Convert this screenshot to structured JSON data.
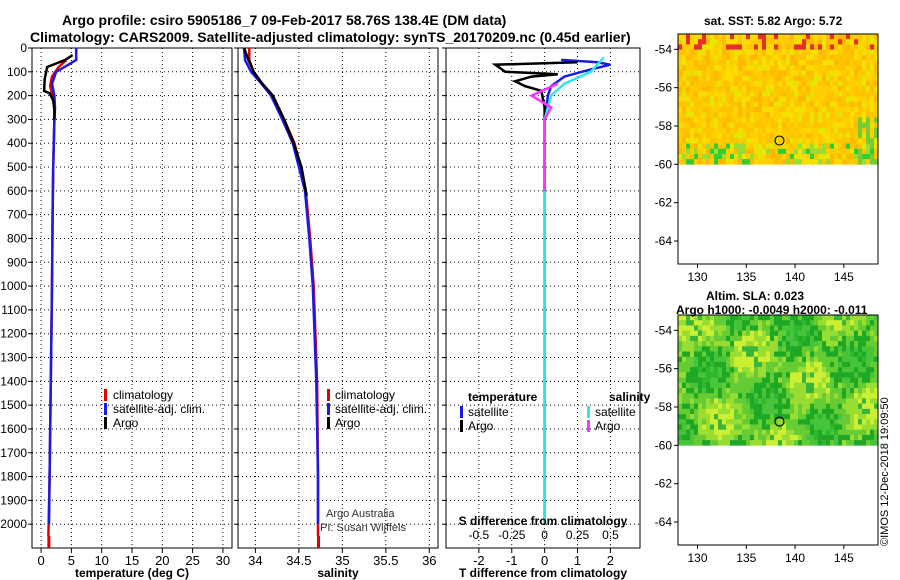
{
  "header": {
    "title_line1": "Argo profile: csiro 5905186_7 09-Feb-2017 58.76S 138.4E (DM data)",
    "title_line2": "Climatology: CARS2009. Satellite-adjusted climatology: synTS_20170209.nc (0.45d earlier)"
  },
  "colors": {
    "climatology": "#e00000",
    "satellite": "#1a1ae6",
    "argo": "#000000",
    "sal_satellite": "#33e6e6",
    "sal_argo": "#ff33ff"
  },
  "chart_data": [
    {
      "type": "line",
      "id": "temperature",
      "xlabel": "temperature (deg C)",
      "xlim": [
        -1.5,
        31.5
      ],
      "ylim": [
        2100,
        0
      ],
      "x_ticks": [
        0,
        5,
        10,
        15,
        20,
        25,
        30
      ],
      "y_ticks": [
        0,
        100,
        200,
        300,
        400,
        500,
        600,
        700,
        800,
        900,
        1000,
        1100,
        1200,
        1300,
        1400,
        1500,
        1600,
        1700,
        1800,
        1900,
        2000
      ],
      "legend": [
        "climatology",
        "satellite-adj. clim.",
        "Argo"
      ],
      "series": [
        {
          "name": "climatology",
          "points": [
            [
              4.2,
              50
            ],
            [
              2.9,
              80
            ],
            [
              1.8,
              120
            ],
            [
              1.5,
              160
            ],
            [
              1.9,
              200
            ],
            [
              2.2,
              250
            ],
            [
              2.2,
              300
            ],
            [
              2.1,
              400
            ],
            [
              2.0,
              500
            ],
            [
              1.9,
              700
            ],
            [
              1.8,
              1000
            ],
            [
              1.6,
              1400
            ],
            [
              1.4,
              1800
            ],
            [
              1.2,
              2050
            ]
          ]
        },
        {
          "name": "satellite-adj. clim.",
          "points": [
            [
              5.8,
              0
            ],
            [
              5.8,
              50
            ],
            [
              4.5,
              70
            ],
            [
              2.5,
              100
            ],
            [
              1.8,
              150
            ],
            [
              2.2,
              200
            ],
            [
              2.3,
              250
            ],
            [
              2.2,
              300
            ],
            [
              2.1,
              400
            ],
            [
              2.0,
              500
            ],
            [
              1.9,
              700
            ],
            [
              1.8,
              1000
            ],
            [
              1.6,
              1400
            ],
            [
              1.4,
              1800
            ],
            [
              1.3,
              2000
            ]
          ]
        },
        {
          "name": "Argo",
          "points": [
            [
              5.2,
              30
            ],
            [
              4.0,
              50
            ],
            [
              1.0,
              80
            ],
            [
              0.6,
              130
            ],
            [
              0.5,
              180
            ],
            [
              1.4,
              190
            ],
            [
              2.0,
              220
            ],
            [
              2.2,
              260
            ],
            [
              2.2,
              300
            ]
          ]
        }
      ]
    },
    {
      "type": "line",
      "id": "salinity",
      "xlabel": "salinity",
      "xlim": [
        33.8,
        36.1
      ],
      "ylim": [
        2100,
        0
      ],
      "x_ticks": [
        34,
        34.5,
        35,
        35.5,
        36
      ],
      "legend": [
        "climatology",
        "satellite-adj. clim.",
        "Argo"
      ],
      "credit_line1": "Argo Australia",
      "credit_line2": "PI: Susan Wijffels",
      "series": [
        {
          "name": "climatology",
          "points": [
            [
              33.93,
              0
            ],
            [
              33.93,
              50
            ],
            [
              33.98,
              100
            ],
            [
              34.08,
              150
            ],
            [
              34.2,
              200
            ],
            [
              34.33,
              300
            ],
            [
              34.45,
              400
            ],
            [
              34.52,
              500
            ],
            [
              34.58,
              600
            ],
            [
              34.63,
              800
            ],
            [
              34.67,
              1000
            ],
            [
              34.71,
              1400
            ],
            [
              34.72,
              1800
            ],
            [
              34.72,
              2050
            ]
          ]
        },
        {
          "name": "satellite-adj. clim.",
          "points": [
            [
              33.87,
              0
            ],
            [
              33.88,
              50
            ],
            [
              33.95,
              100
            ],
            [
              34.07,
              150
            ],
            [
              34.18,
              200
            ],
            [
              34.31,
              300
            ],
            [
              34.43,
              400
            ],
            [
              34.5,
              500
            ],
            [
              34.57,
              600
            ],
            [
              34.62,
              800
            ],
            [
              34.66,
              1000
            ],
            [
              34.7,
              1400
            ],
            [
              34.72,
              1800
            ],
            [
              34.72,
              2000
            ]
          ]
        },
        {
          "name": "Argo",
          "points": [
            [
              33.87,
              0
            ],
            [
              33.92,
              50
            ],
            [
              33.98,
              100
            ],
            [
              34.08,
              150
            ],
            [
              34.2,
              200
            ],
            [
              34.33,
              300
            ],
            [
              34.44,
              400
            ],
            [
              34.53,
              500
            ],
            [
              34.58,
              600
            ],
            [
              34.59,
              620
            ]
          ]
        }
      ]
    },
    {
      "type": "line",
      "id": "difference",
      "xlabel": "T difference from climatology",
      "x2label": "S difference from climatology",
      "xlim": [
        -3,
        2.9
      ],
      "ylim": [
        2100,
        0
      ],
      "x_ticks": [
        -2,
        -1,
        0,
        1,
        2
      ],
      "x2_ticks": [
        "-0.5",
        "-0.25",
        "0",
        "0.25",
        "0.5"
      ],
      "legend_left_title": "temperature",
      "legend_right_title": "salinity",
      "legend_left": [
        "satellite",
        "Argo"
      ],
      "legend_right": [
        "satellite",
        "Argo"
      ],
      "series": [
        {
          "name": "T satellite",
          "points": [
            [
              0.5,
              50
            ],
            [
              1.6,
              60
            ],
            [
              2.0,
              70
            ],
            [
              1.4,
              90
            ],
            [
              0.6,
              120
            ],
            [
              0.2,
              160
            ],
            [
              0.1,
              200
            ],
            [
              0.0,
              300
            ],
            [
              0.0,
              600
            ],
            [
              0.0,
              2000
            ]
          ]
        },
        {
          "name": "T Argo",
          "points": [
            [
              1.0,
              60
            ],
            [
              -1.5,
              70
            ],
            [
              -1.2,
              100
            ],
            [
              0.4,
              110
            ],
            [
              -0.4,
              120
            ],
            [
              -0.9,
              140
            ],
            [
              -0.6,
              160
            ],
            [
              -0.1,
              180
            ],
            [
              0.0,
              250
            ],
            [
              0.0,
              600
            ]
          ]
        },
        {
          "name": "S satellite",
          "points": [
            [
              0.45,
              40
            ],
            [
              0.35,
              100
            ],
            [
              0.15,
              150
            ],
            [
              0.05,
              200
            ],
            [
              0.0,
              300
            ],
            [
              0.0,
              2000
            ]
          ]
        },
        {
          "name": "S Argo",
          "points": [
            [
              0.1,
              150
            ],
            [
              -0.1,
              200
            ],
            [
              0.05,
              250
            ],
            [
              0.0,
              300
            ],
            [
              0.0,
              600
            ]
          ]
        }
      ]
    },
    {
      "type": "heatmap",
      "id": "sst-map",
      "title": "sat. SST: 5.82 Argo: 5.72",
      "x_ticks": [
        130,
        135,
        140,
        145
      ],
      "y_ticks": [
        -54,
        -56,
        -58,
        -60,
        -62,
        -64
      ],
      "xlim": [
        128,
        148.5
      ],
      "ylim": [
        -65.2,
        -53.2
      ],
      "data_extent_lat": [
        -60,
        -53.2
      ],
      "argo_position": [
        138.4,
        -58.76
      ]
    },
    {
      "type": "heatmap",
      "id": "sla-map",
      "title": "Altim. SLA: 0.023",
      "subtitle": "Argo h1000: -0.0049 h2000: -0.011",
      "x_ticks": [
        130,
        135,
        140,
        145
      ],
      "y_ticks": [
        -54,
        -56,
        -58,
        -60,
        -62,
        -64
      ],
      "xlim": [
        128,
        148.5
      ],
      "ylim": [
        -65.2,
        -53.2
      ],
      "data_extent_lat": [
        -60,
        -53.2
      ],
      "argo_position": [
        138.4,
        -58.76
      ]
    }
  ],
  "footer": {
    "stamp": "©IMOS 12-Dec-2018 19:09:50"
  }
}
